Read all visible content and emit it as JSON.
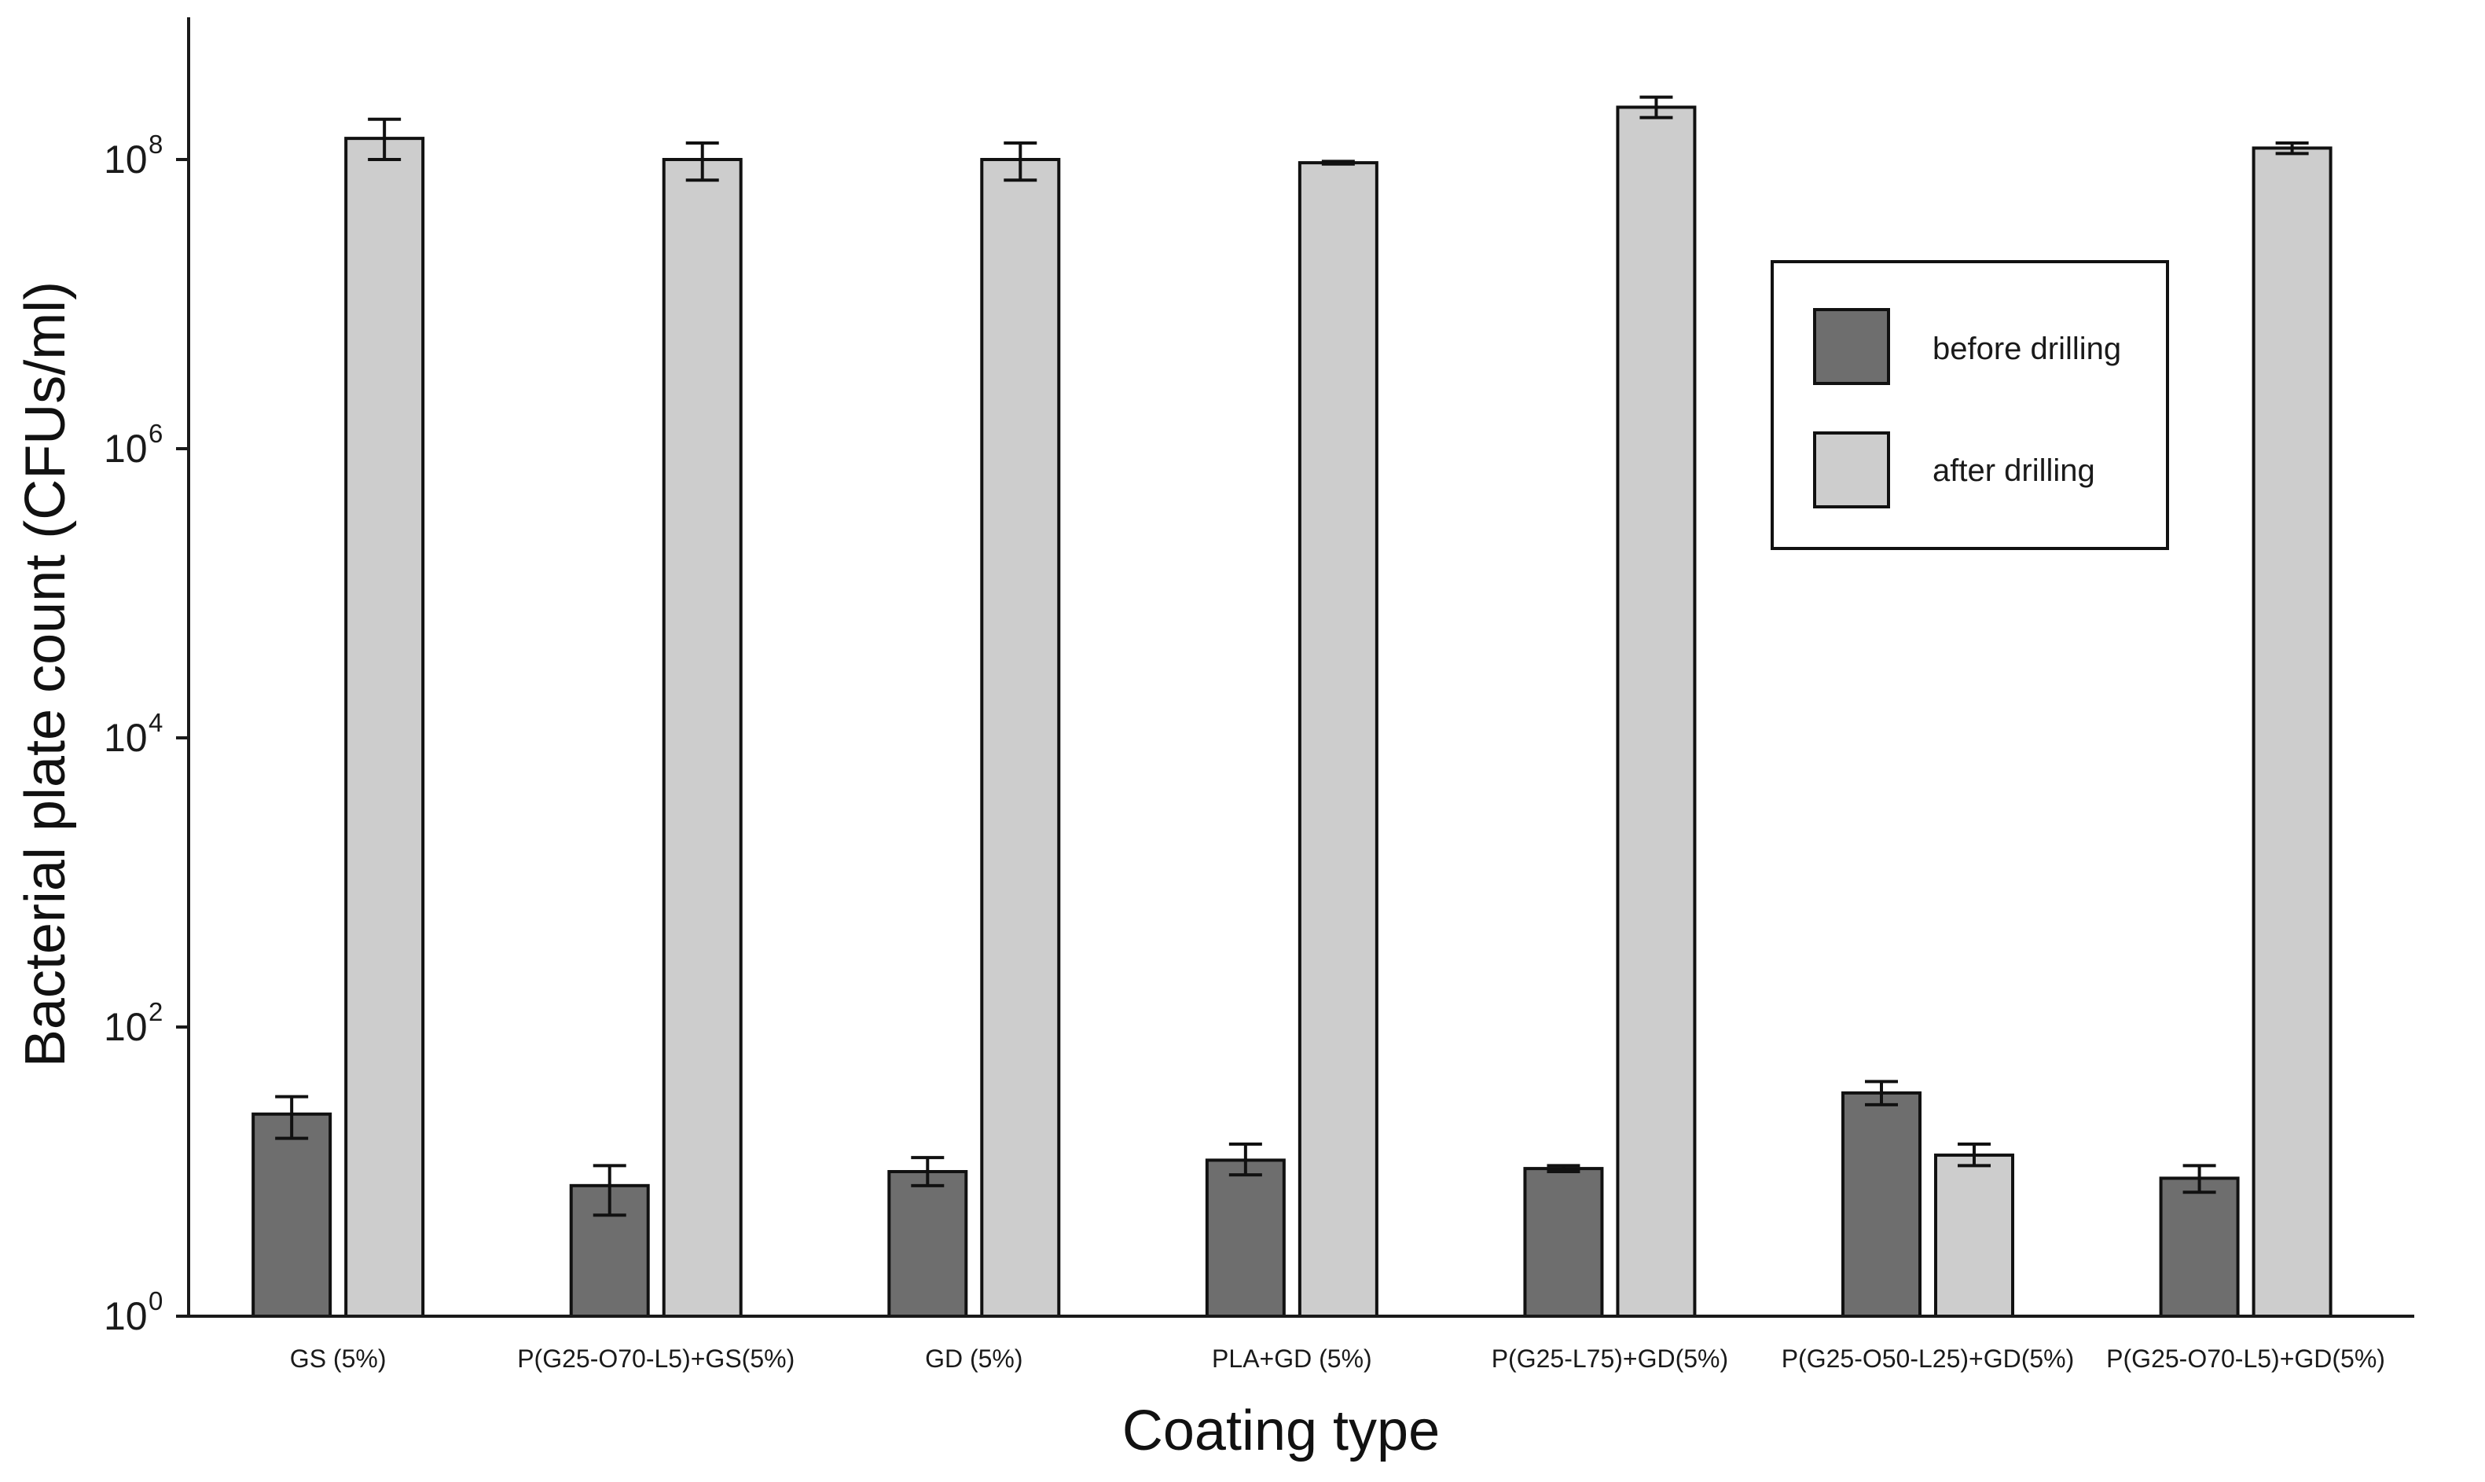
{
  "chart_data": {
    "type": "bar",
    "yscale": "log10",
    "ylim_exponents": [
      0,
      9
    ],
    "ytick_base": "10",
    "ytick_exponents": [
      "0",
      "2",
      "4",
      "6",
      "8"
    ],
    "xlabel": "Coating type",
    "ylabel": "Bacterial plate count (CFUs/ml)",
    "categories": [
      "GS (5%)",
      "P(G25-O70-L5)+GS(5%)",
      "GD (5%)",
      "PLA+GD (5%)",
      "P(G25-L75)+GD(5%)",
      "P(G25-O50-L25)+GD(5%)",
      "P(G25-O70-L5)+GD(5%)"
    ],
    "series": [
      {
        "name": "before drilling",
        "color": "#6e6e6e",
        "values": [
          25,
          8,
          10,
          12,
          10.5,
          35,
          9
        ],
        "err_low": [
          17,
          5,
          8,
          9.5,
          10,
          29,
          7.2
        ],
        "err_high": [
          33,
          11,
          12.5,
          15.5,
          11,
          42,
          11
        ]
      },
      {
        "name": "after drilling",
        "color": "#cdcdcd",
        "values": [
          140000000,
          100000000,
          100000000,
          95000000,
          230000000,
          13,
          120000000
        ],
        "err_low": [
          100000000,
          72000000,
          72000000,
          93000000,
          195000000,
          11,
          110000000
        ],
        "err_high": [
          190000000,
          130000000,
          130000000,
          97000000,
          270000000,
          15.5,
          130000000
        ]
      }
    ],
    "legend": {
      "position": "top-right",
      "entries": [
        "before drilling",
        "after drilling"
      ]
    }
  }
}
